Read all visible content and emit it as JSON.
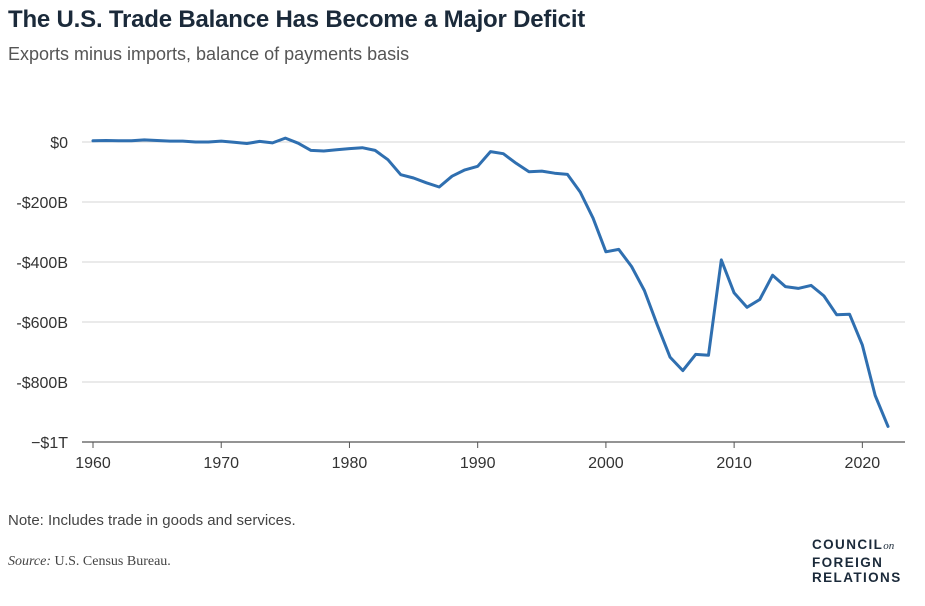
{
  "header": {
    "title": "The U.S. Trade Balance Has Become a Major Deficit",
    "subtitle": "Exports minus imports, balance of payments basis"
  },
  "footer": {
    "note": "Note: Includes trade in goods and services.",
    "source_label": "Source:",
    "source_text": "U.S. Census Bureau.",
    "logo_line1": "COUNCIL",
    "logo_on": "on",
    "logo_line2": "FOREIGN",
    "logo_line3": "RELATIONS"
  },
  "colors": {
    "line": "#2f6fb0",
    "grid": "#d4d4d4",
    "axis": "#555555"
  },
  "chart_data": {
    "type": "line",
    "title": "The U.S. Trade Balance Has Become a Major Deficit",
    "subtitle": "Exports minus imports, balance of payments basis",
    "xlabel": "",
    "ylabel": "",
    "xlim": [
      1960,
      2022
    ],
    "ylim": [
      -1000,
      0
    ],
    "y_unit": "billions of US dollars",
    "y_ticks": [
      0,
      -200,
      -400,
      -600,
      -800,
      -1000
    ],
    "y_tick_labels": [
      "$0",
      "-$200B",
      "-$400B",
      "-$600B",
      "-$800B",
      "−$1T"
    ],
    "x_ticks": [
      1960,
      1970,
      1980,
      1990,
      2000,
      2010,
      2020
    ],
    "x_tick_labels": [
      "1960",
      "1970",
      "1980",
      "1990",
      "2000",
      "2010",
      "2020"
    ],
    "grid": true,
    "series": [
      {
        "name": "Trade balance",
        "x": [
          1960,
          1961,
          1962,
          1963,
          1964,
          1965,
          1966,
          1967,
          1968,
          1969,
          1970,
          1971,
          1972,
          1973,
          1974,
          1975,
          1976,
          1977,
          1978,
          1979,
          1980,
          1981,
          1982,
          1983,
          1984,
          1985,
          1986,
          1987,
          1988,
          1989,
          1990,
          1991,
          1992,
          1993,
          1994,
          1995,
          1996,
          1997,
          1998,
          1999,
          2000,
          2001,
          2002,
          2003,
          2004,
          2005,
          2006,
          2007,
          2008,
          2009,
          2010,
          2011,
          2012,
          2013,
          2014,
          2015,
          2016,
          2017,
          2018,
          2019,
          2020,
          2021,
          2022
        ],
        "values": [
          4,
          5,
          4,
          4,
          7,
          5,
          3,
          3,
          0,
          0,
          3,
          -1,
          -5,
          2,
          -3,
          13,
          -4,
          -28,
          -30,
          -26,
          -22,
          -19,
          -28,
          -59,
          -109,
          -120,
          -136,
          -150,
          -114,
          -93,
          -81,
          -32,
          -39,
          -71,
          -99,
          -97,
          -104,
          -108,
          -167,
          -254,
          -366,
          -358,
          -415,
          -495,
          -609,
          -717,
          -762,
          -708,
          -711,
          -393,
          -503,
          -551,
          -525,
          -444,
          -482,
          -488,
          -478,
          -513,
          -576,
          -574,
          -677,
          -845,
          -948
        ]
      }
    ]
  }
}
